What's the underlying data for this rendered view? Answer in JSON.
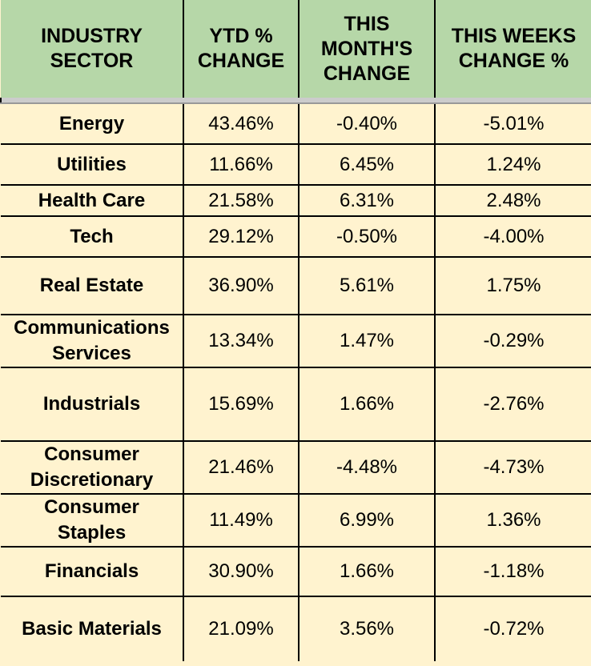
{
  "headers": {
    "sector": [
      "INDUSTRY",
      "SECTOR"
    ],
    "ytd": [
      "YTD %",
      "CHANGE"
    ],
    "month": [
      "THIS",
      "MONTH'S",
      "CHANGE"
    ],
    "week": [
      "THIS WEEKS",
      "CHANGE %"
    ]
  },
  "rows": [
    {
      "sector": [
        "Energy"
      ],
      "ytd": "43.46%",
      "month": "-0.40%",
      "week": "-5.01%"
    },
    {
      "sector": [
        "Utilities"
      ],
      "ytd": "11.66%",
      "month": "6.45%",
      "week": "1.24%"
    },
    {
      "sector": [
        "Health Care"
      ],
      "ytd": "21.58%",
      "month": "6.31%",
      "week": "2.48%"
    },
    {
      "sector": [
        "Tech"
      ],
      "ytd": "29.12%",
      "month": "-0.50%",
      "week": "-4.00%"
    },
    {
      "sector": [
        "Real Estate"
      ],
      "ytd": "36.90%",
      "month": "5.61%",
      "week": "1.75%"
    },
    {
      "sector": [
        "Communications",
        "Services"
      ],
      "ytd": "13.34%",
      "month": "1.47%",
      "week": "-0.29%"
    },
    {
      "sector": [
        "Industrials"
      ],
      "ytd": "15.69%",
      "month": "1.66%",
      "week": "-2.76%"
    },
    {
      "sector": [
        "Consumer",
        "Discretionary"
      ],
      "ytd": "21.46%",
      "month": "-4.48%",
      "week": "-4.73%"
    },
    {
      "sector": [
        "Consumer",
        "Staples"
      ],
      "ytd": "11.49%",
      "month": "6.99%",
      "week": "1.36%"
    },
    {
      "sector": [
        "Financials"
      ],
      "ytd": "30.90%",
      "month": "1.66%",
      "week": "-1.18%"
    },
    {
      "sector": [
        "Basic Materials"
      ],
      "ytd": "21.09%",
      "month": "3.56%",
      "week": "-0.72%"
    }
  ],
  "colors": {
    "header_bg": "#b6d7a8",
    "body_bg": "#fff3cf",
    "border": "#000000"
  }
}
